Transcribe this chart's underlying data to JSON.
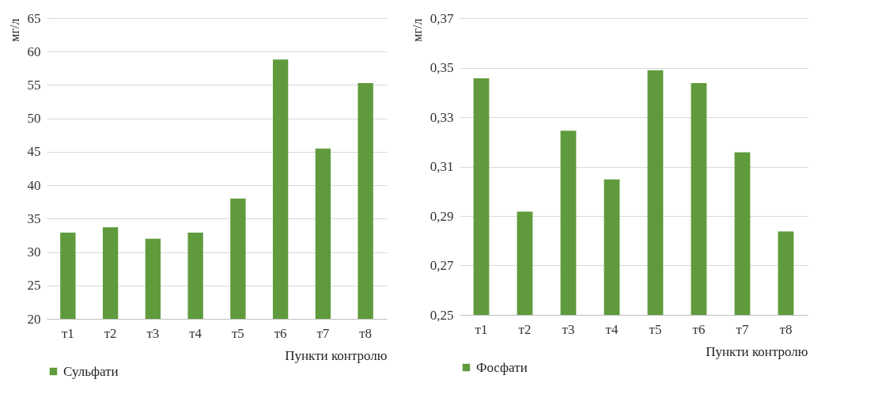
{
  "chart_data": [
    {
      "type": "bar",
      "ylabel": "мг/л",
      "xlabel": "Пункти контролю",
      "categories": [
        "т1",
        "т2",
        "т3",
        "т4",
        "т5",
        "т6",
        "т7",
        "т8"
      ],
      "series": [
        {
          "name": "Сульфати",
          "color": "#5f9b3c",
          "values": [
            32.9,
            33.7,
            32.0,
            32.9,
            38.0,
            58.8,
            45.5,
            55.3
          ]
        }
      ],
      "ylim": [
        20,
        65
      ],
      "yticks": [
        20,
        25,
        30,
        35,
        40,
        45,
        50,
        55,
        60,
        65
      ],
      "grid": "y",
      "legend": "bottom"
    },
    {
      "type": "bar",
      "ylabel": "мг/л",
      "xlabel": "Пункти контролю",
      "categories": [
        "т1",
        "т2",
        "т3",
        "т4",
        "т5",
        "т6",
        "т7",
        "т8"
      ],
      "series": [
        {
          "name": "Фосфати",
          "color": "#5f9b3c",
          "values": [
            0.3457,
            0.2918,
            0.3245,
            0.3048,
            0.349,
            0.3438,
            0.3158,
            0.2838
          ]
        }
      ],
      "ylim": [
        0.25,
        0.37
      ],
      "yticks": [
        {
          "value": 0.25,
          "label": "0,25"
        },
        {
          "value": 0.27,
          "label": "0,27"
        },
        {
          "value": 0.29,
          "label": "0,29"
        },
        {
          "value": 0.31,
          "label": "0,31"
        },
        {
          "value": 0.33,
          "label": "0,33"
        },
        {
          "value": 0.35,
          "label": "0,35"
        },
        {
          "value": 0.37,
          "label": "0,37"
        }
      ],
      "grid": "y",
      "legend": "bottom"
    }
  ]
}
